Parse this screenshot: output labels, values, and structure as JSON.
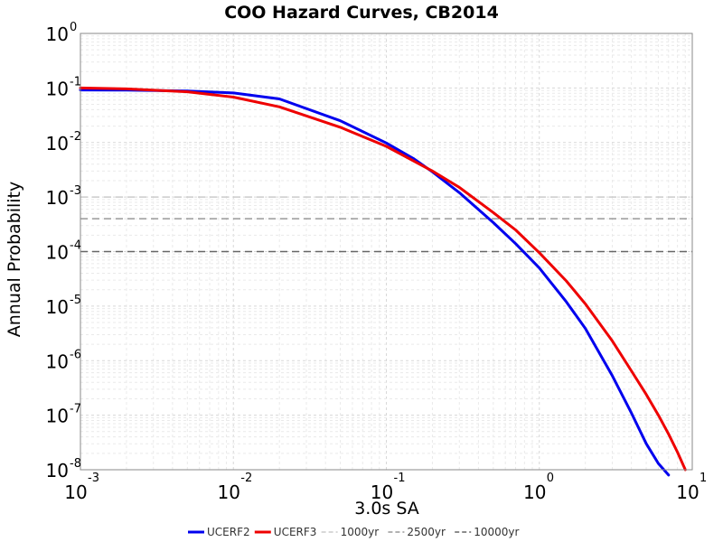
{
  "chart_data": {
    "type": "line",
    "title": "COO Hazard Curves, CB2014",
    "xlabel": "3.0s SA",
    "ylabel": "Annual Probability",
    "x_scale": "log",
    "y_scale": "log",
    "xlim": [
      0.001,
      10
    ],
    "ylim": [
      1e-08,
      1
    ],
    "x_ticks": [
      {
        "base": "10",
        "exp": "-3",
        "value": 0.001
      },
      {
        "base": "10",
        "exp": "-2",
        "value": 0.01
      },
      {
        "base": "10",
        "exp": "-1",
        "value": 0.1
      },
      {
        "base": "10",
        "exp": "0",
        "value": 1
      },
      {
        "base": "10",
        "exp": "1",
        "value": 10
      }
    ],
    "y_ticks": [
      {
        "base": "10",
        "exp": "0",
        "value": 1
      },
      {
        "base": "10",
        "exp": "-1",
        "value": 0.1
      },
      {
        "base": "10",
        "exp": "-2",
        "value": 0.01
      },
      {
        "base": "10",
        "exp": "-3",
        "value": 0.001
      },
      {
        "base": "10",
        "exp": "-4",
        "value": 0.0001
      },
      {
        "base": "10",
        "exp": "-5",
        "value": 1e-05
      },
      {
        "base": "10",
        "exp": "-6",
        "value": 1e-06
      },
      {
        "base": "10",
        "exp": "-7",
        "value": 1e-07
      },
      {
        "base": "10",
        "exp": "-8",
        "value": 1e-08
      }
    ],
    "grid": true,
    "legend_position": "bottom",
    "series": [
      {
        "name": "UCERF2",
        "color": "#0000ee",
        "style": "solid",
        "x": [
          0.001,
          0.002,
          0.005,
          0.01,
          0.02,
          0.05,
          0.1,
          0.15,
          0.2,
          0.3,
          0.5,
          0.7,
          1.0,
          1.5,
          2.0,
          3.0,
          4.0,
          5.0,
          6.0,
          7.0
        ],
        "y": [
          0.092,
          0.091,
          0.088,
          0.081,
          0.063,
          0.025,
          0.0098,
          0.0051,
          0.0029,
          0.0012,
          0.00034,
          0.00014,
          5e-05,
          1.2e-05,
          3.9e-06,
          5.3e-07,
          1.1e-07,
          3e-08,
          1.3e-08,
          8e-09
        ]
      },
      {
        "name": "UCERF3",
        "color": "#ee0000",
        "style": "solid",
        "x": [
          0.001,
          0.002,
          0.005,
          0.01,
          0.02,
          0.05,
          0.1,
          0.2,
          0.3,
          0.5,
          0.7,
          1.0,
          1.5,
          2.0,
          3.0,
          4.0,
          5.0,
          6.0,
          7.0,
          8.0,
          9.0
        ],
        "y": [
          0.1,
          0.096,
          0.085,
          0.068,
          0.045,
          0.019,
          0.0085,
          0.003,
          0.0015,
          0.00052,
          0.00025,
          9.5e-05,
          2.9e-05,
          1.1e-05,
          2.3e-06,
          6.5e-07,
          2.4e-07,
          1e-07,
          4.5e-08,
          2.1e-08,
          1e-08
        ]
      },
      {
        "name": "1000yr",
        "color": "#cccccc",
        "style": "dashed",
        "y_value": 0.001
      },
      {
        "name": "2500yr",
        "color": "#999999",
        "style": "dashed",
        "y_value": 0.0004
      },
      {
        "name": "10000yr",
        "color": "#666666",
        "style": "dashed",
        "y_value": 0.0001
      }
    ]
  }
}
